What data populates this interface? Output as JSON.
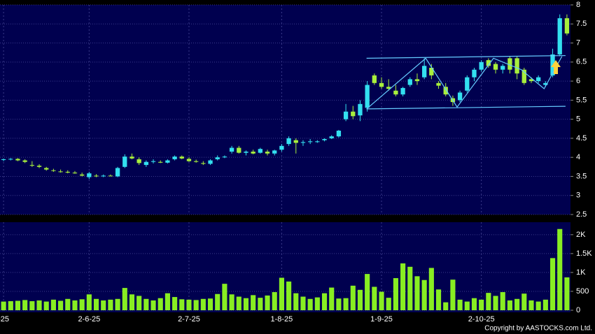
{
  "chart_data": {
    "type": "candlestick",
    "copyright": "Copyright by AASTOCKS.com Ltd.",
    "categories": [
      "-25",
      null,
      null,
      null,
      null,
      null,
      null,
      null,
      null,
      null,
      null,
      null,
      "2-6-25",
      null,
      null,
      null,
      null,
      null,
      null,
      null,
      null,
      null,
      null,
      null,
      null,
      null,
      "2-7-25",
      null,
      null,
      null,
      null,
      null,
      null,
      null,
      null,
      null,
      null,
      null,
      null,
      "1-8-25",
      null,
      null,
      null,
      null,
      null,
      null,
      null,
      null,
      null,
      null,
      null,
      null,
      null,
      "1-9-25",
      null,
      null,
      null,
      null,
      null,
      null,
      null,
      null,
      null,
      null,
      null,
      null,
      null,
      "2-10-25",
      null,
      null,
      null,
      null,
      null,
      null,
      null,
      null,
      null,
      null,
      null,
      null
    ],
    "open": [
      3.93,
      3.95,
      3.96,
      3.92,
      3.8,
      3.78,
      3.72,
      3.66,
      3.63,
      3.62,
      3.6,
      3.55,
      3.48,
      3.52,
      3.5,
      3.52,
      3.5,
      3.75,
      4.02,
      3.95,
      3.8,
      3.88,
      3.88,
      3.86,
      3.95,
      4.02,
      3.96,
      3.9,
      3.85,
      3.83,
      3.95,
      4.0,
      4.15,
      4.25,
      4.12,
      4.15,
      4.12,
      4.15,
      4.1,
      4.2,
      4.35,
      4.45,
      4.38,
      4.4,
      4.4,
      4.45,
      4.5,
      4.55,
      5.0,
      5.2,
      5.1,
      5.3,
      6.15,
      5.95,
      5.85,
      5.75,
      5.65,
      5.9,
      6.05,
      6.1,
      6.35,
      5.95,
      5.85,
      5.55,
      5.5,
      5.75,
      6.1,
      6.3,
      6.55,
      6.45,
      6.3,
      6.6,
      6.6,
      6.3,
      6.05,
      6.0,
      5.9,
      6.15,
      6.7,
      7.65
    ],
    "high": [
      3.97,
      3.98,
      3.98,
      3.95,
      3.9,
      3.82,
      3.75,
      3.7,
      3.68,
      3.66,
      3.64,
      3.6,
      3.62,
      3.56,
      3.55,
      3.55,
      3.75,
      4.08,
      4.1,
      4.0,
      3.92,
      3.95,
      3.92,
      3.95,
      4.05,
      4.05,
      4.0,
      3.94,
      3.9,
      3.95,
      4.05,
      4.05,
      4.3,
      4.3,
      4.18,
      4.2,
      4.25,
      4.2,
      4.2,
      4.35,
      4.55,
      4.5,
      4.45,
      4.48,
      4.45,
      4.5,
      4.58,
      4.72,
      5.4,
      5.35,
      5.5,
      6.0,
      6.2,
      6.1,
      6.05,
      5.9,
      5.85,
      6.1,
      6.2,
      6.6,
      6.45,
      6.0,
      5.95,
      5.62,
      5.75,
      6.15,
      6.35,
      6.55,
      6.6,
      6.5,
      6.45,
      6.65,
      6.65,
      6.35,
      6.1,
      6.15,
      6.0,
      6.85,
      7.75,
      7.75
    ],
    "low": [
      3.9,
      3.92,
      3.9,
      3.85,
      3.75,
      3.72,
      3.65,
      3.62,
      3.6,
      3.58,
      3.57,
      3.5,
      3.43,
      3.48,
      3.48,
      3.5,
      3.48,
      3.72,
      3.95,
      3.8,
      3.75,
      3.84,
      3.85,
      3.84,
      3.92,
      3.95,
      3.88,
      3.86,
      3.8,
      3.8,
      3.92,
      3.98,
      4.1,
      4.1,
      4.05,
      4.08,
      4.1,
      4.05,
      4.05,
      4.15,
      4.3,
      4.1,
      4.3,
      4.35,
      4.38,
      4.42,
      4.48,
      4.52,
      4.95,
      5.0,
      4.95,
      5.2,
      5.9,
      5.8,
      5.75,
      5.6,
      5.6,
      5.85,
      5.9,
      6.05,
      6.05,
      5.8,
      5.6,
      5.35,
      5.45,
      5.7,
      6.0,
      6.25,
      6.35,
      6.2,
      6.2,
      6.2,
      6.05,
      5.9,
      5.95,
      5.95,
      5.85,
      6.1,
      6.65,
      7.2
    ],
    "close": [
      3.95,
      3.96,
      3.92,
      3.88,
      3.78,
      3.75,
      3.68,
      3.65,
      3.62,
      3.6,
      3.58,
      3.52,
      3.58,
      3.5,
      3.52,
      3.51,
      3.72,
      4.02,
      3.97,
      3.85,
      3.88,
      3.9,
      3.86,
      3.92,
      4.02,
      3.97,
      3.9,
      3.88,
      3.83,
      3.92,
      4.0,
      4.02,
      4.25,
      4.12,
      4.15,
      4.1,
      4.22,
      4.1,
      4.18,
      4.3,
      4.5,
      4.38,
      4.4,
      4.42,
      4.42,
      4.48,
      4.55,
      4.7,
      5.2,
      5.08,
      5.4,
      5.9,
      5.95,
      5.85,
      5.8,
      5.65,
      5.82,
      6.05,
      6.0,
      6.4,
      6.15,
      5.88,
      5.65,
      5.45,
      5.7,
      6.1,
      6.3,
      6.5,
      6.4,
      6.3,
      6.4,
      6.3,
      6.2,
      5.95,
      6.0,
      6.1,
      5.95,
      6.7,
      7.65,
      7.25
    ],
    "volume": [
      230,
      240,
      250,
      270,
      240,
      260,
      230,
      280,
      250,
      300,
      260,
      290,
      420,
      300,
      260,
      280,
      300,
      590,
      420,
      380,
      300,
      260,
      320,
      450,
      350,
      290,
      280,
      270,
      300,
      310,
      430,
      700,
      420,
      360,
      320,
      400,
      330,
      390,
      480,
      860,
      760,
      450,
      360,
      300,
      340,
      450,
      600,
      310,
      320,
      650,
      540,
      960,
      620,
      490,
      330,
      850,
      1240,
      1150,
      900,
      800,
      1120,
      550,
      210,
      810,
      280,
      230,
      320,
      280,
      460,
      380,
      480,
      260,
      300,
      440,
      260,
      230,
      280,
      1380,
      2150,
      870
    ],
    "up_color": "#33e0f0",
    "down_color": "#a8f03c",
    "volume_color": "#88ee22",
    "trend_color": "#66ccff",
    "ylim": [
      2.5,
      8
    ],
    "yticks": [
      2.5,
      3,
      3.5,
      4,
      4.5,
      5,
      5.5,
      6,
      6.5,
      7,
      7.5,
      8
    ],
    "y2lim": [
      0,
      2330
    ],
    "y2ticks": [
      0,
      500,
      {
        "value": 1000,
        "label": "1K"
      },
      {
        "value": 1500,
        "label": "1.5K"
      },
      {
        "value": 2000,
        "label": "2K"
      }
    ],
    "trend_lines": [
      {
        "x": [
          50.9,
          78.8
        ],
        "y": [
          6.6,
          6.67
        ]
      },
      {
        "x": [
          50.9,
          78.8
        ],
        "y": [
          5.27,
          5.34
        ]
      },
      {
        "x": [
          50.9,
          59.2,
          63.6,
          68.7,
          72.6,
          75.8,
          78.3
        ],
        "y": [
          5.27,
          6.6,
          5.32,
          6.6,
          6.3,
          5.8,
          6.65
        ]
      }
    ],
    "grid": true
  }
}
